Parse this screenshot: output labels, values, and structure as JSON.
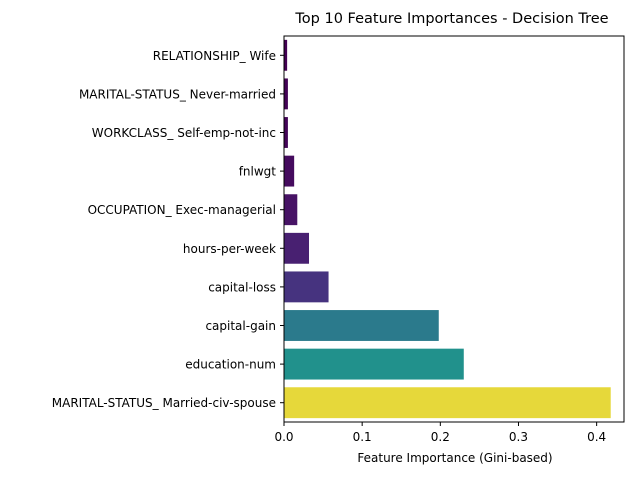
{
  "chart_data": {
    "type": "bar",
    "orientation": "horizontal",
    "title": "Top 10 Feature Importances - Decision Tree",
    "xlabel": "Feature Importance (Gini-based)",
    "ylabel": "",
    "xlim": [
      0,
      0.435
    ],
    "x_ticks": [
      0.0,
      0.1,
      0.2,
      0.3,
      0.4
    ],
    "x_tick_labels": [
      "0.0",
      "0.1",
      "0.2",
      "0.3",
      "0.4"
    ],
    "grid": false,
    "legend": "none",
    "categories": [
      "RELATIONSHIP_ Wife",
      "MARITAL-STATUS_ Never-married",
      "WORKCLASS_ Self-emp-not-inc",
      "fnlwgt",
      "OCCUPATION_ Exec-managerial",
      "hours-per-week",
      "capital-loss",
      "capital-gain",
      "education-num",
      "MARITAL-STATUS_ Married-civ-spouse"
    ],
    "values": [
      0.004,
      0.005,
      0.005,
      0.013,
      0.017,
      0.032,
      0.057,
      0.198,
      0.23,
      0.418
    ],
    "colors": [
      "#440154",
      "#440356",
      "#440558",
      "#450b5e",
      "#471365",
      "#482071",
      "#46337f",
      "#2b7a8c",
      "#21918c",
      "#e6d83a"
    ]
  }
}
